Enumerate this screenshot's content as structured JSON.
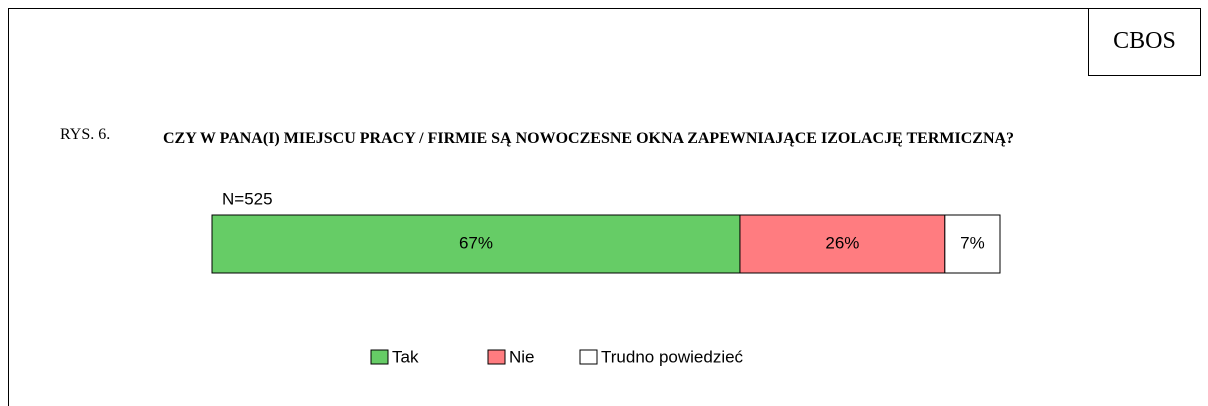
{
  "brand": "CBOS",
  "figure_label": "RYS. 6.",
  "chart_data": {
    "type": "stacked-bar",
    "title": "CZY W PANA(I) MIEJSCU PRACY / FIRMIE SĄ NOWOCZESNE OKNA ZAPEWNIAJĄCE IZOLACJĘ TERMICZNĄ?",
    "annotation": "N=525",
    "series": [
      {
        "name": "Tak",
        "color": "#66cc66",
        "values": [
          67
        ],
        "value_labels": [
          "67%"
        ]
      },
      {
        "name": "Nie",
        "color": "#ff7c80",
        "values": [
          26
        ],
        "value_labels": [
          "26%"
        ]
      },
      {
        "name": "Trudno powiedzieć",
        "color": "#ffffff",
        "values": [
          7
        ],
        "value_labels": [
          "7%"
        ]
      }
    ]
  }
}
